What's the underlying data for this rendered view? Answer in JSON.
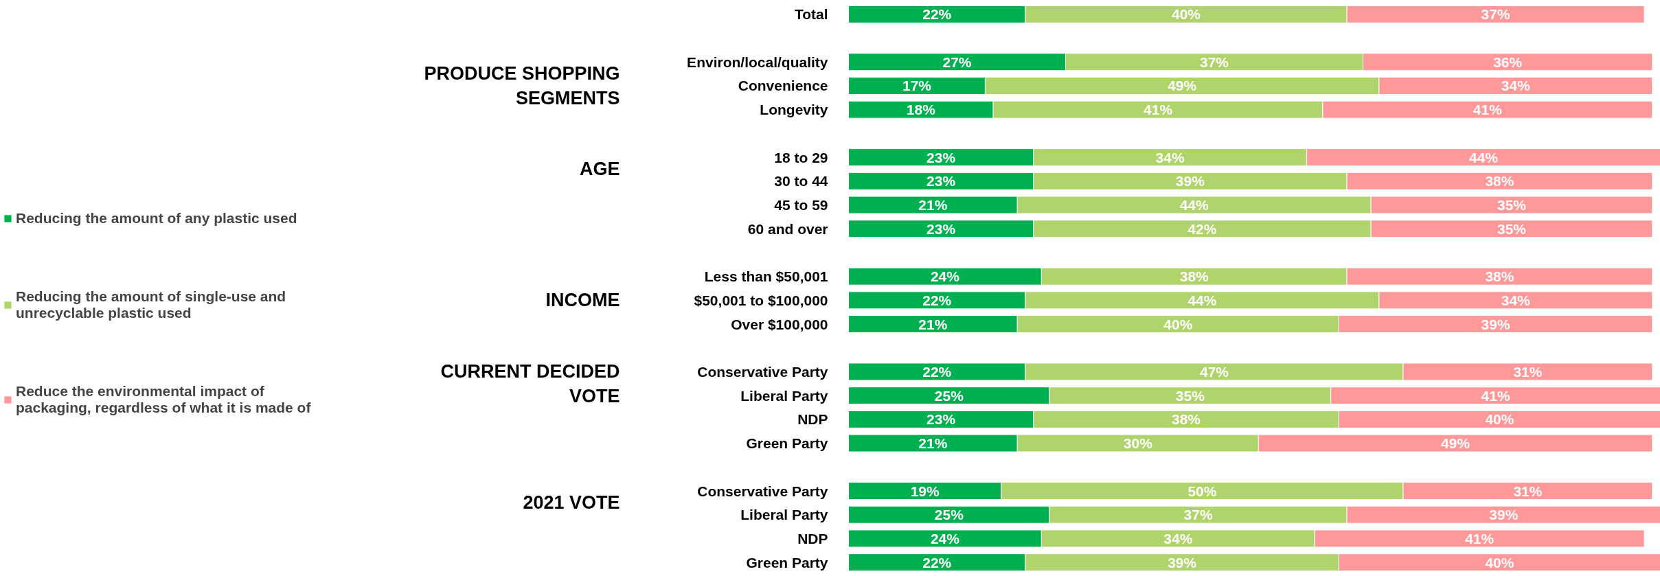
{
  "chart_data": {
    "type": "bar",
    "orientation": "horizontal",
    "stacked": true,
    "tick_labels": "y",
    "legend": "left",
    "xlim": [
      0,
      101
    ],
    "categories": [
      "Total",
      null,
      "Environ/local/quality",
      "Convenience",
      "Longevity",
      null,
      "18 to 29",
      "30 to 44",
      "45 to 59",
      "60 and over",
      null,
      "Less than $50,001",
      "$50,001 to $100,000",
      "Over $100,000",
      null,
      "Conservative Party",
      "Liberal Party",
      "NDP",
      "Green Party",
      null,
      "Conservative Party",
      "Liberal Party",
      "NDP",
      "Green Party"
    ],
    "annotations": [
      "PRODUCE SHOPPING SEGMENTS",
      "AGE",
      "INCOME",
      "CURRENT DECIDED VOTE",
      "2021 VOTE"
    ],
    "series": [
      {
        "name": "Reducing the amount of any plastic used",
        "color": "#00b050",
        "values": [
          22,
          null,
          27,
          17,
          18,
          null,
          23,
          23,
          21,
          23,
          null,
          24,
          22,
          21,
          null,
          22,
          25,
          23,
          21,
          null,
          19,
          25,
          24,
          22
        ],
        "value_labels": [
          "22%",
          null,
          "27%",
          "17%",
          "18%",
          null,
          "23%",
          "23%",
          "21%",
          "23%",
          null,
          "24%",
          "22%",
          "21%",
          null,
          "22%",
          "25%",
          "23%",
          "21%",
          null,
          "19%",
          "25%",
          "24%",
          "22%"
        ]
      },
      {
        "name": "Reducing the amount of single-use and unrecyclable plastic used",
        "color": "#b0d46c",
        "values": [
          40,
          null,
          37,
          49,
          41,
          null,
          34,
          39,
          44,
          42,
          null,
          38,
          44,
          40,
          null,
          47,
          35,
          38,
          30,
          null,
          50,
          37,
          34,
          39
        ],
        "value_labels": [
          "40%",
          null,
          "37%",
          "49%",
          "41%",
          null,
          "34%",
          "39%",
          "44%",
          "42%",
          null,
          "38%",
          "44%",
          "40%",
          null,
          "47%",
          "35%",
          "38%",
          "30%",
          null,
          "50%",
          "37%",
          "34%",
          "39%"
        ]
      },
      {
        "name": "Reduce the environmental impact of packaging, regardless of what it is made of",
        "color": "#ff9999",
        "values": [
          37,
          null,
          36,
          34,
          41,
          null,
          44,
          38,
          35,
          35,
          null,
          38,
          34,
          39,
          null,
          31,
          41,
          40,
          49,
          null,
          31,
          39,
          41,
          40
        ],
        "value_labels": [
          "37%",
          null,
          "36%",
          "34%",
          "41%",
          null,
          "44%",
          "38%",
          "35%",
          "35%",
          null,
          "38%",
          "34%",
          "39%",
          null,
          "31%",
          "41%",
          "40%",
          "49%",
          null,
          "31%",
          "39%",
          "41%",
          "40%"
        ]
      }
    ]
  }
}
